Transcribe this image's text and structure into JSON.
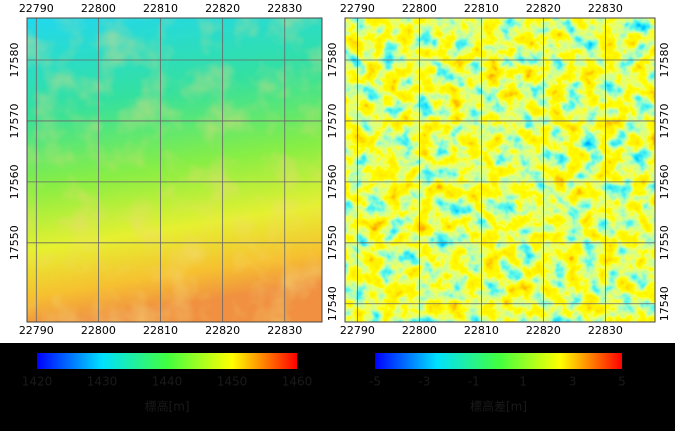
{
  "panels": [
    {
      "xticks": [
        22790,
        22800,
        22810,
        22820,
        22830
      ],
      "yticks": [
        17550,
        17560,
        17570,
        17580
      ],
      "xlim": [
        22788.5,
        22836
      ],
      "ylim": [
        17537,
        17586.9
      ],
      "ylabel_sides": [
        "left"
      ],
      "colorbar": {
        "labels": [
          "1420",
          "1430",
          "1440",
          "1450",
          "1460"
        ],
        "title": "標高[m]"
      }
    },
    {
      "xticks": [
        22790,
        22800,
        22810,
        22820,
        22830
      ],
      "yticks": [
        17540,
        17550,
        17560,
        17570,
        17580
      ],
      "xlim": [
        22788,
        22838
      ],
      "ylim": [
        17537,
        17586.9
      ],
      "ylabel_sides": [
        "left",
        "right"
      ],
      "colorbar": {
        "labels": [
          "-5",
          "-3",
          "-1",
          "1",
          "3",
          "5"
        ],
        "title": "標高差[m]"
      }
    }
  ]
}
